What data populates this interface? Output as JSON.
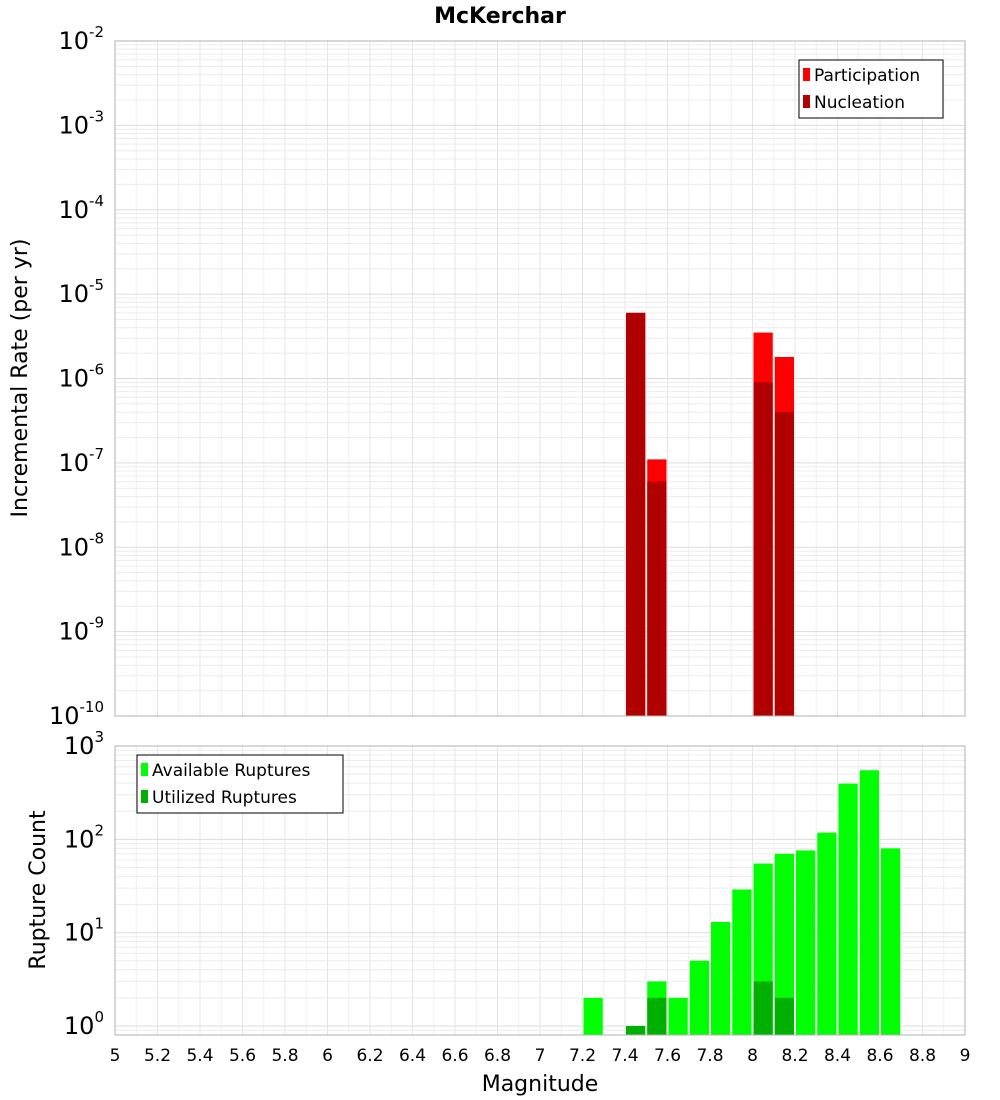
{
  "chart_data": [
    {
      "type": "bar",
      "panel": "top",
      "title": "McKerchar",
      "xlabel": "",
      "ylabel": "Incremental Rate (per yr)",
      "yscale": "log",
      "ylim": [
        1e-10,
        0.01
      ],
      "xlim": [
        5,
        9
      ],
      "bin_width": 0.1,
      "grid": true,
      "legend_position": "top-right",
      "y_ticks": [
        {
          "base": "10",
          "exp": "-10",
          "value": 1e-10
        },
        {
          "base": "10",
          "exp": "-9",
          "value": 1e-09
        },
        {
          "base": "10",
          "exp": "-8",
          "value": 1e-08
        },
        {
          "base": "10",
          "exp": "-7",
          "value": 1e-07
        },
        {
          "base": "10",
          "exp": "-6",
          "value": 1e-06
        },
        {
          "base": "10",
          "exp": "-5",
          "value": 1e-05
        },
        {
          "base": "10",
          "exp": "-4",
          "value": 0.0001
        },
        {
          "base": "10",
          "exp": "-3",
          "value": 0.001
        },
        {
          "base": "10",
          "exp": "-2",
          "value": 0.01
        }
      ],
      "series": [
        {
          "name": "Participation",
          "color": "#ff0000",
          "x": [
            7.45,
            7.55,
            8.05,
            8.15
          ],
          "values": [
            6e-06,
            1.1e-07,
            3.5e-06,
            1.8e-06
          ]
        },
        {
          "name": "Nucleation",
          "color": "#b00000",
          "x": [
            7.45,
            7.55,
            8.05,
            8.15
          ],
          "values": [
            6e-06,
            6e-08,
            9e-07,
            4e-07
          ]
        }
      ]
    },
    {
      "type": "bar",
      "panel": "bottom",
      "title": "",
      "xlabel": "Magnitude",
      "ylabel": "Rupture Count",
      "yscale": "log",
      "ylim": [
        0.8,
        1000
      ],
      "xlim": [
        5,
        9
      ],
      "bin_width": 0.1,
      "grid": true,
      "legend_position": "top-left",
      "x_ticks": [
        "5",
        "5.2",
        "5.4",
        "5.6",
        "5.8",
        "6",
        "6.2",
        "6.4",
        "6.6",
        "6.8",
        "7",
        "7.2",
        "7.4",
        "7.6",
        "7.8",
        "8",
        "8.2",
        "8.4",
        "8.6",
        "8.8",
        "9"
      ],
      "y_ticks": [
        {
          "base": "10",
          "exp": "0",
          "value": 1
        },
        {
          "base": "10",
          "exp": "1",
          "value": 10
        },
        {
          "base": "10",
          "exp": "2",
          "value": 100
        },
        {
          "base": "10",
          "exp": "3",
          "value": 1000
        }
      ],
      "series": [
        {
          "name": "Available Ruptures",
          "color": "#00ff00",
          "x": [
            7.25,
            7.55,
            7.65,
            7.75,
            7.85,
            7.95,
            8.05,
            8.15,
            8.25,
            8.35,
            8.45,
            8.55,
            8.65
          ],
          "values": [
            2,
            3,
            2,
            5,
            13,
            29,
            55,
            70,
            76,
            118,
            395,
            550,
            80
          ]
        },
        {
          "name": "Utilized Ruptures",
          "color": "#00b000",
          "x": [
            7.45,
            7.55,
            8.05,
            8.15
          ],
          "values": [
            1,
            2,
            3,
            2
          ]
        }
      ]
    }
  ]
}
